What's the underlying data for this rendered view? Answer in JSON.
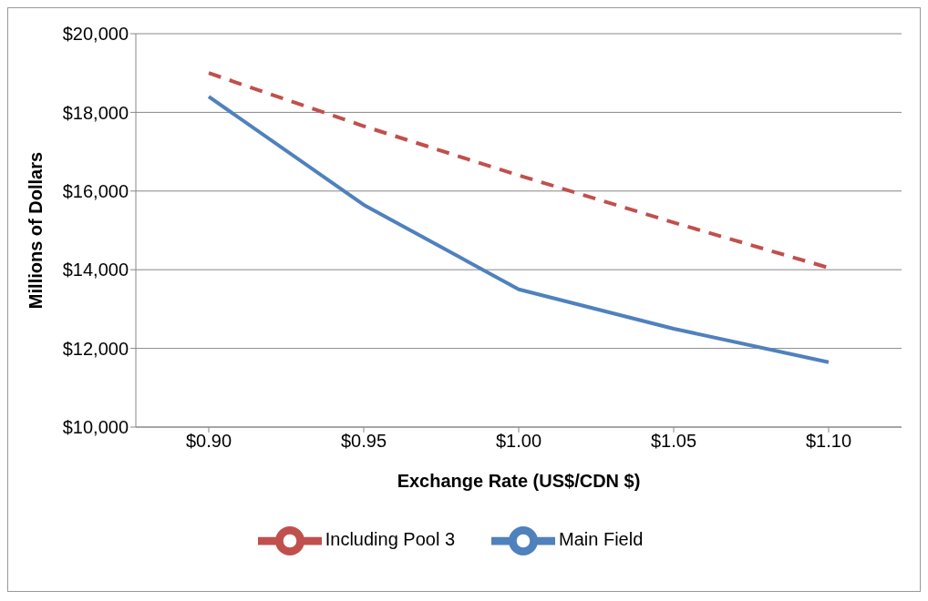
{
  "chart_data": {
    "type": "line",
    "xlabel": "Exchange Rate (US$/CDN $)",
    "ylabel": "Millions of Dollars",
    "categories": [
      "$0.90",
      "$0.95",
      "$1.00",
      "$1.05",
      "$1.10"
    ],
    "series": [
      {
        "name": "Main Field",
        "color": "#4f81bd",
        "values": [
          18400,
          15650,
          13500,
          12500,
          11650
        ],
        "line_style": "solid"
      },
      {
        "name": "Including Pool 3",
        "color": "#c0504d",
        "values": [
          19000,
          17650,
          16400,
          15200,
          14050
        ],
        "line_style": "dashed"
      }
    ],
    "ylim": [
      10000,
      20000
    ],
    "yticks": [
      {
        "value": 10000,
        "label": "$10,000"
      },
      {
        "value": 12000,
        "label": "$12,000"
      },
      {
        "value": 14000,
        "label": "$14,000"
      },
      {
        "value": 16000,
        "label": "$16,000"
      },
      {
        "value": 18000,
        "label": "$18,000"
      },
      {
        "value": 20000,
        "label": "$20,000"
      }
    ],
    "grid": "y",
    "legend": "bottom",
    "marker": "none"
  }
}
